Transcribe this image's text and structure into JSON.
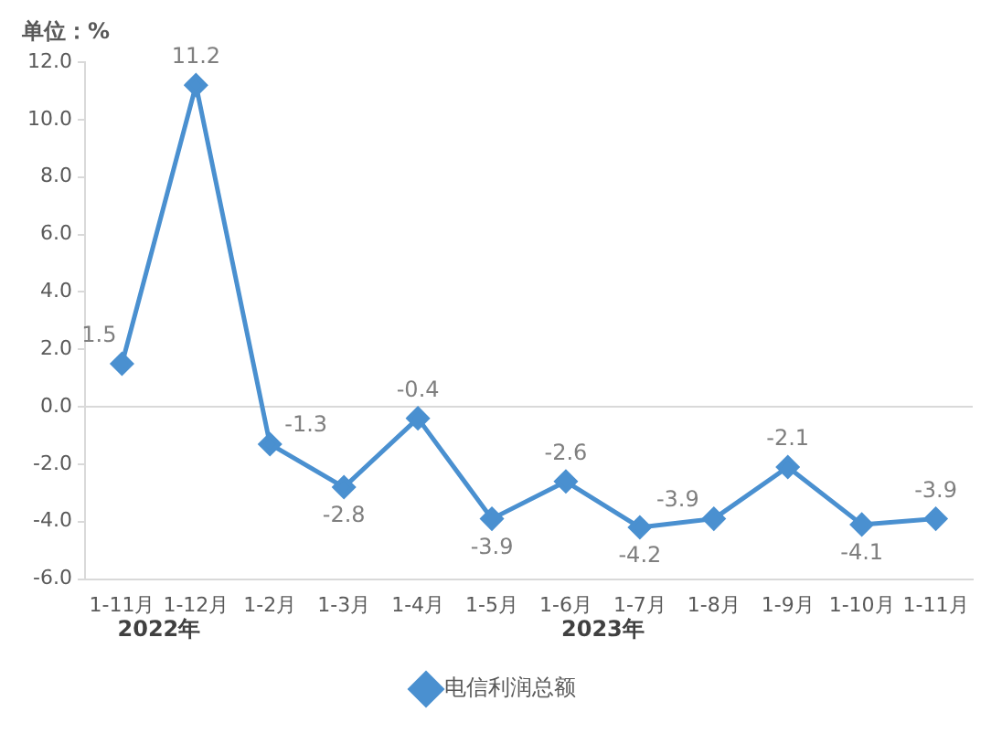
{
  "chart_data": {
    "type": "line",
    "ylabel": "单位：%",
    "categories": [
      "1-11月",
      "1-12月",
      "1-2月",
      "1-3月",
      "1-4月",
      "1-5月",
      "1-6月",
      "1-7月",
      "1-8月",
      "1-9月",
      "1-10月",
      "1-11月"
    ],
    "series": [
      {
        "name": "电信利润总额",
        "color": "#4a90d0",
        "values": [
          1.5,
          11.2,
          -1.3,
          -2.8,
          -0.4,
          -3.9,
          -2.6,
          -4.2,
          -3.9,
          -2.1,
          -4.1,
          -3.9
        ]
      }
    ],
    "ylim": [
      -6,
      12
    ],
    "yticks": [
      {
        "value": -6,
        "label": "-6.0"
      },
      {
        "value": -4,
        "label": "-4.0"
      },
      {
        "value": -2,
        "label": "-2.0"
      },
      {
        "value": 0,
        "label": "0.0"
      },
      {
        "value": 2,
        "label": "2.0"
      },
      {
        "value": 4,
        "label": "4.0"
      },
      {
        "value": 6,
        "label": "6.0"
      },
      {
        "value": 8,
        "label": "8.0"
      },
      {
        "value": 10,
        "label": "10.0"
      },
      {
        "value": 12,
        "label": "12.0"
      }
    ],
    "annotations": [
      "2022年",
      "2023年"
    ],
    "ref_lines": [
      {
        "axis": "y",
        "value": 0,
        "color": "#d9d9d9"
      }
    ],
    "data_labels": true,
    "legend": "bottom",
    "marker": "diamond",
    "line_style": "solid",
    "grid": false
  }
}
